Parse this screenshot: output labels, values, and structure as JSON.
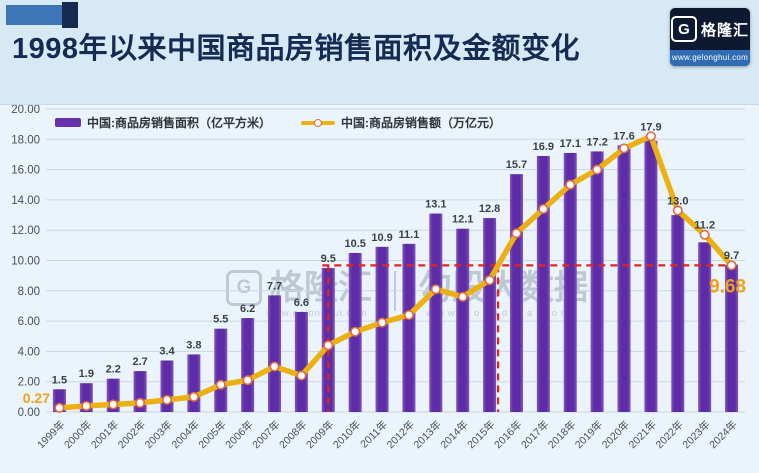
{
  "header": {
    "title": "1998年以来中国商品房销售面积及金额变化",
    "logo": {
      "monogram": "G",
      "brand": "格隆汇",
      "url": "www.gelonghui.com"
    }
  },
  "watermark": {
    "monogram": "G",
    "brand1": "格隆汇",
    "brand1_url": "www.gelonghui.com",
    "brand2": "勾股大数据",
    "brand2_url": "www.gogudata.com"
  },
  "colors": {
    "page_bg": "#d7e9f5",
    "panel_bg": "#ecf4fb",
    "title_text": "#142b52",
    "bar": "#5e2ca4",
    "bar_edge": "#8055c5",
    "line": "#ebb112",
    "marker_ring": "#dd6a48",
    "dashed": "#e32420",
    "accent_orange": "#efa11c",
    "grid": "#c9d7e1",
    "axis_text": "#4a5056",
    "label_text": "#3b4045",
    "logo_bg": "#0c1930",
    "logo_strip": "#2f6cb3"
  },
  "chart_data": {
    "type": "bar+line",
    "title": "1998年以来中国商品房销售面积及金额变化",
    "categories": [
      "1999年",
      "2000年",
      "2001年",
      "2002年",
      "2003年",
      "2004年",
      "2005年",
      "2006年",
      "2007年",
      "2008年",
      "2009年",
      "2010年",
      "2011年",
      "2012年",
      "2013年",
      "2014年",
      "2015年",
      "2016年",
      "2017年",
      "2018年",
      "2019年",
      "2020年",
      "2021年",
      "2022年",
      "2023年",
      "2024年"
    ],
    "series": [
      {
        "name": "中国:商品房销售面积（亿平方米）",
        "type": "bar",
        "color": "#5e2ca4",
        "values": [
          1.5,
          1.9,
          2.2,
          2.7,
          3.4,
          3.8,
          5.5,
          6.2,
          7.7,
          6.6,
          9.5,
          10.5,
          10.9,
          11.1,
          13.1,
          12.1,
          12.8,
          15.7,
          16.9,
          17.1,
          17.2,
          17.6,
          17.9,
          13.0,
          11.2,
          9.7
        ],
        "labels": [
          "1.5",
          "1.9",
          "2.2",
          "2.7",
          "3.4",
          "3.8",
          "5.5",
          "6.2",
          "7.7",
          "6.6",
          "9.5",
          "10.5",
          "10.9",
          "11.1",
          "13.1",
          "12.1",
          "12.8",
          "15.7",
          "16.9",
          "17.1",
          "17.2",
          "17.6",
          "17.9",
          "13.0",
          "11.2",
          "9.7"
        ]
      },
      {
        "name": "中国:商品房销售额（万亿元）",
        "type": "line",
        "color": "#ebb112",
        "values": [
          0.27,
          0.4,
          0.5,
          0.6,
          0.8,
          1.0,
          1.8,
          2.1,
          3.0,
          2.4,
          4.4,
          5.3,
          5.9,
          6.4,
          8.1,
          7.6,
          8.7,
          11.8,
          13.4,
          15.0,
          16.0,
          17.4,
          18.2,
          13.3,
          11.7,
          9.68
        ],
        "point_labels": {
          "first": "0.27",
          "last": "9.68"
        },
        "note": "only first and last points carry labels in the image; intermediate values estimated from gridlines"
      }
    ],
    "ylim": [
      0,
      20
    ],
    "yticks": [
      "20.00",
      "18.00",
      "16.00",
      "14.00",
      "12.00",
      "10.00",
      "8.00",
      "6.00",
      "4.00",
      "2.00",
      "0.00"
    ],
    "grid": true,
    "legend_position": "top-left",
    "annotations": {
      "horizontal_dashed_at": 9.68,
      "vertical_dashed_at_category": "2009年",
      "vertical_dashed_at_line_crossing": true,
      "style": "red dashed"
    }
  }
}
